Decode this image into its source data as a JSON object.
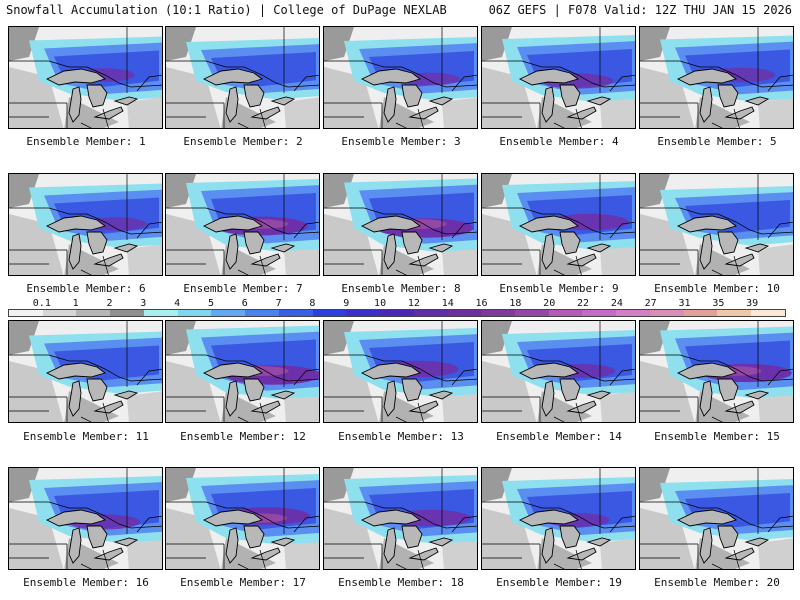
{
  "header": {
    "left": "Snowfall Accumulation (10:1 Ratio) | College of DuPage NEXLAB",
    "right": "06Z GEFS | F078 Valid: 12Z THU JAN 15 2026"
  },
  "scale": {
    "labels": [
      "0.1",
      "1",
      "2",
      "3",
      "4",
      "5",
      "6",
      "7",
      "8",
      "9",
      "10",
      "12",
      "14",
      "16",
      "18",
      "20",
      "22",
      "24",
      "27",
      "31",
      "35",
      "39"
    ],
    "colors": [
      "#f2f2f2",
      "#d6d6d6",
      "#b5b5b5",
      "#8f8f8f",
      "#a8f0f0",
      "#7fd6ee",
      "#63a8f2",
      "#4a82ee",
      "#3760e6",
      "#2a3fdc",
      "#3a2fc8",
      "#4b27b8",
      "#5e2ca8",
      "#6e2f9c",
      "#7d3a98",
      "#9448a6",
      "#b25cb5",
      "#c46ac2",
      "#d27ec6",
      "#d88fb7",
      "#e2a09a",
      "#f0c8a8",
      "#fae8d6"
    ]
  },
  "members": [
    {
      "label": "Ensemble Member: 1",
      "intensity": 0.45
    },
    {
      "label": "Ensemble Member: 2",
      "intensity": 0.3
    },
    {
      "label": "Ensemble Member: 3",
      "intensity": 0.4
    },
    {
      "label": "Ensemble Member: 4",
      "intensity": 0.6
    },
    {
      "label": "Ensemble Member: 5",
      "intensity": 0.55
    },
    {
      "label": "Ensemble Member: 6",
      "intensity": 0.45
    },
    {
      "label": "Ensemble Member: 7",
      "intensity": 0.9
    },
    {
      "label": "Ensemble Member: 8",
      "intensity": 0.95
    },
    {
      "label": "Ensemble Member: 9",
      "intensity": 0.7
    },
    {
      "label": "Ensemble Member: 10",
      "intensity": 0.2
    },
    {
      "label": "Ensemble Member: 11",
      "intensity": 0.35
    },
    {
      "label": "Ensemble Member: 12",
      "intensity": 0.95
    },
    {
      "label": "Ensemble Member: 13",
      "intensity": 0.7
    },
    {
      "label": "Ensemble Member: 14",
      "intensity": 0.5
    },
    {
      "label": "Ensemble Member: 15",
      "intensity": 0.85
    },
    {
      "label": "Ensemble Member: 16",
      "intensity": 0.6
    },
    {
      "label": "Ensemble Member: 17",
      "intensity": 0.8
    },
    {
      "label": "Ensemble Member: 18",
      "intensity": 0.7
    },
    {
      "label": "Ensemble Member: 19",
      "intensity": 0.5
    },
    {
      "label": "Ensemble Member: 20",
      "intensity": 0.3
    }
  ]
}
